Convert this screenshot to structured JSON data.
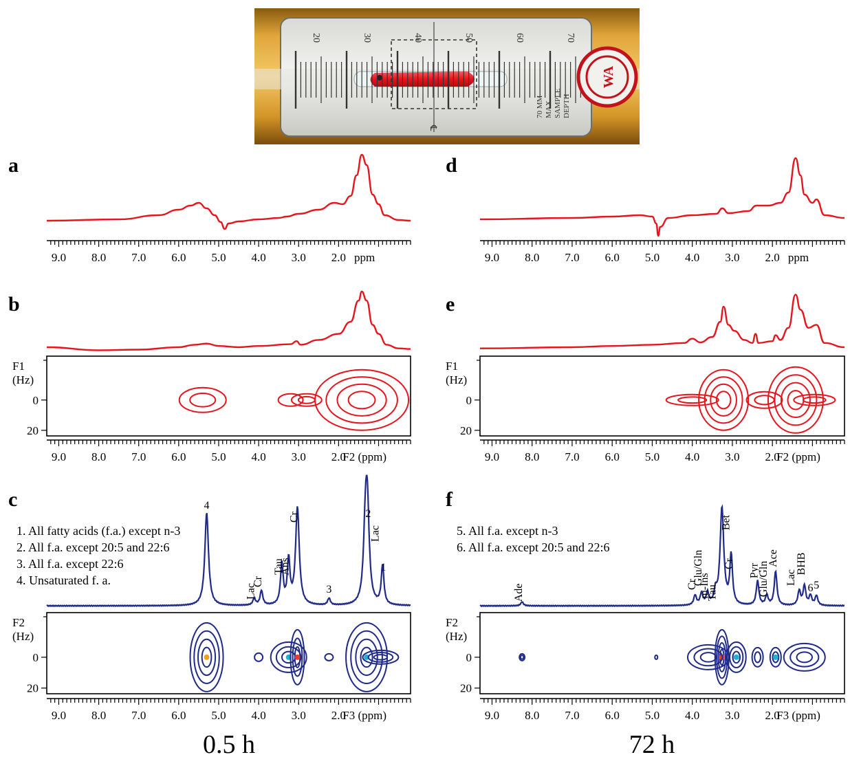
{
  "photo": {
    "scale_numbers": [
      "20",
      "30",
      "40",
      "50",
      "60",
      "70"
    ],
    "gauge_text": [
      "70 MM",
      "MAX",
      "SAMPLE",
      "DEPTH"
    ],
    "centerline_mark": "℄"
  },
  "panels": {
    "a": {
      "letter": "a"
    },
    "b": {
      "letter": "b"
    },
    "c": {
      "letter": "c",
      "legend": [
        "1. All fatty acids (f.a.) except n-3",
        "2. All f.a. except 20:5 and 22:6",
        "3. All f.a. except 22:6",
        "4. Unsaturated f. a."
      ]
    },
    "d": {
      "letter": "d"
    },
    "e": {
      "letter": "e"
    },
    "f": {
      "letter": "f",
      "legend": [
        "5. All f.a. except n-3",
        "6. All f.a. except 20:5 and 22:6"
      ]
    }
  },
  "time_labels": {
    "left": "0.5 h",
    "right": "72 h"
  },
  "axes": {
    "ppm_ticks": [
      "9.0",
      "8.0",
      "7.0",
      "6.0",
      "5.0",
      "4.0",
      "3.0",
      "2.0"
    ],
    "unit_1d": "ppm",
    "unit_f2": "F2 (ppm)",
    "unit_f3": "F3 (ppm)",
    "ylabel_f1": [
      "F1",
      "(Hz)"
    ],
    "ylabel_f2": [
      "F2",
      "(Hz)"
    ],
    "hz_ticks": [
      "0",
      "20"
    ]
  },
  "chart_data": [
    {
      "panel": "a",
      "type": "line",
      "color": "#e8141c",
      "x_range_ppm": [
        9.3,
        0.2
      ],
      "points": [
        [
          9.3,
          0.04
        ],
        [
          7.5,
          0.06
        ],
        [
          6.5,
          0.12
        ],
        [
          6.0,
          0.2
        ],
        [
          5.7,
          0.26
        ],
        [
          5.5,
          0.3
        ],
        [
          5.3,
          0.22
        ],
        [
          5.1,
          0.12
        ],
        [
          4.95,
          0.02
        ],
        [
          4.85,
          -0.08
        ],
        [
          4.75,
          0.0
        ],
        [
          4.5,
          0.03
        ],
        [
          4.0,
          0.06
        ],
        [
          3.5,
          0.08
        ],
        [
          3.3,
          0.1
        ],
        [
          3.0,
          0.14
        ],
        [
          2.5,
          0.2
        ],
        [
          2.1,
          0.3
        ],
        [
          1.9,
          0.28
        ],
        [
          1.7,
          0.4
        ],
        [
          1.55,
          0.7
        ],
        [
          1.42,
          1.0
        ],
        [
          1.3,
          0.85
        ],
        [
          1.15,
          0.42
        ],
        [
          1.0,
          0.28
        ],
        [
          0.85,
          0.12
        ],
        [
          0.5,
          0.05
        ],
        [
          0.2,
          0.04
        ]
      ]
    },
    {
      "panel": "b",
      "type": "line",
      "color": "#e8141c",
      "x_range_ppm": [
        9.3,
        0.2
      ],
      "points": [
        [
          9.3,
          0.08
        ],
        [
          8.0,
          0.03
        ],
        [
          7.0,
          0.04
        ],
        [
          6.0,
          0.08
        ],
        [
          5.6,
          0.12
        ],
        [
          5.3,
          0.14
        ],
        [
          5.0,
          0.1
        ],
        [
          4.5,
          0.08
        ],
        [
          4.0,
          0.1
        ],
        [
          3.2,
          0.13
        ],
        [
          3.05,
          0.18
        ],
        [
          2.95,
          0.12
        ],
        [
          2.5,
          0.2
        ],
        [
          2.0,
          0.3
        ],
        [
          1.7,
          0.5
        ],
        [
          1.5,
          0.85
        ],
        [
          1.42,
          1.0
        ],
        [
          1.3,
          0.85
        ],
        [
          1.15,
          0.45
        ],
        [
          1.0,
          0.3
        ],
        [
          0.8,
          0.12
        ],
        [
          0.5,
          0.06
        ],
        [
          0.2,
          0.05
        ]
      ]
    },
    {
      "panel": "c",
      "type": "line",
      "color": "#1f2a8a",
      "x_range_ppm": [
        9.3,
        0.2
      ],
      "peaks": [
        {
          "label": "4",
          "ppm": 5.3,
          "height": 0.95
        },
        {
          "label": "Lac",
          "ppm": 4.11,
          "height": 0.07
        },
        {
          "label": "Cr",
          "ppm": 3.93,
          "height": 0.15
        },
        {
          "label": "Tau",
          "ppm": 3.42,
          "height": 0.42
        },
        {
          "label": "Ans",
          "ppm": 3.25,
          "height": 0.45
        },
        {
          "label": "Cr",
          "ppm": 3.03,
          "height": 1.0
        },
        {
          "label": "3",
          "ppm": 2.24,
          "height": 0.07
        },
        {
          "label": "2",
          "ppm": 1.28,
          "height": 0.9
        },
        {
          "label": "Lac",
          "ppm": 1.33,
          "height": 0.7
        },
        {
          "label": "1",
          "ppm": 0.9,
          "height": 0.4
        }
      ]
    },
    {
      "panel": "d",
      "type": "line",
      "color": "#e8141c",
      "x_range_ppm": [
        9.3,
        0.2
      ],
      "points": [
        [
          9.3,
          0.06
        ],
        [
          7.0,
          0.08
        ],
        [
          6.0,
          0.1
        ],
        [
          5.3,
          0.12
        ],
        [
          5.0,
          0.1
        ],
        [
          4.9,
          0.0
        ],
        [
          4.85,
          -0.18
        ],
        [
          4.8,
          -0.05
        ],
        [
          4.6,
          0.08
        ],
        [
          4.0,
          0.12
        ],
        [
          3.4,
          0.14
        ],
        [
          3.25,
          0.22
        ],
        [
          3.1,
          0.15
        ],
        [
          2.6,
          0.18
        ],
        [
          2.4,
          0.26
        ],
        [
          2.1,
          0.26
        ],
        [
          1.8,
          0.3
        ],
        [
          1.6,
          0.45
        ],
        [
          1.42,
          0.95
        ],
        [
          1.3,
          0.7
        ],
        [
          1.2,
          0.42
        ],
        [
          1.0,
          0.3
        ],
        [
          0.9,
          0.35
        ],
        [
          0.7,
          0.12
        ],
        [
          0.2,
          0.08
        ]
      ]
    },
    {
      "panel": "e",
      "type": "line",
      "color": "#e8141c",
      "x_range_ppm": [
        9.3,
        0.2
      ],
      "points": [
        [
          9.3,
          0.06
        ],
        [
          7.0,
          0.08
        ],
        [
          6.0,
          0.1
        ],
        [
          5.0,
          0.12
        ],
        [
          4.2,
          0.15
        ],
        [
          4.0,
          0.22
        ],
        [
          3.8,
          0.16
        ],
        [
          3.5,
          0.25
        ],
        [
          3.3,
          0.5
        ],
        [
          3.22,
          0.75
        ],
        [
          3.1,
          0.45
        ],
        [
          2.95,
          0.35
        ],
        [
          2.7,
          0.2
        ],
        [
          2.5,
          0.15
        ],
        [
          2.42,
          0.3
        ],
        [
          2.35,
          0.15
        ],
        [
          2.0,
          0.18
        ],
        [
          1.92,
          0.28
        ],
        [
          1.8,
          0.2
        ],
        [
          1.6,
          0.4
        ],
        [
          1.42,
          0.95
        ],
        [
          1.3,
          0.7
        ],
        [
          1.1,
          0.4
        ],
        [
          0.9,
          0.45
        ],
        [
          0.7,
          0.15
        ],
        [
          0.2,
          0.08
        ]
      ]
    },
    {
      "panel": "f",
      "type": "line",
      "color": "#1f2a8a",
      "x_range_ppm": [
        9.3,
        0.2
      ],
      "peaks": [
        {
          "label": "Ade",
          "ppm": 8.25,
          "height": 0.04
        },
        {
          "label": "Cr",
          "ppm": 3.93,
          "height": 0.1
        },
        {
          "label": "Glu/Gln",
          "ppm": 3.77,
          "height": 0.12
        },
        {
          "label": "m-Ins",
          "ppm": 3.62,
          "height": 0.12
        },
        {
          "label": "Tau",
          "ppm": 3.42,
          "height": 0.12
        },
        {
          "label": "Bet",
          "ppm": 3.26,
          "height": 1.0
        },
        {
          "label": "Cr",
          "ppm": 3.03,
          "height": 0.5
        },
        {
          "label": "Pyr",
          "ppm": 2.37,
          "height": 0.25
        },
        {
          "label": "Glu/Gln",
          "ppm": 2.14,
          "height": 0.1
        },
        {
          "label": "Ace",
          "ppm": 1.92,
          "height": 0.35
        },
        {
          "label": "Lac",
          "ppm": 1.33,
          "height": 0.15
        },
        {
          "label": "BHB",
          "ppm": 1.2,
          "height": 0.2
        },
        {
          "label": "6",
          "ppm": 1.05,
          "height": 0.1
        },
        {
          "label": "5",
          "ppm": 0.9,
          "height": 0.1
        }
      ]
    }
  ]
}
